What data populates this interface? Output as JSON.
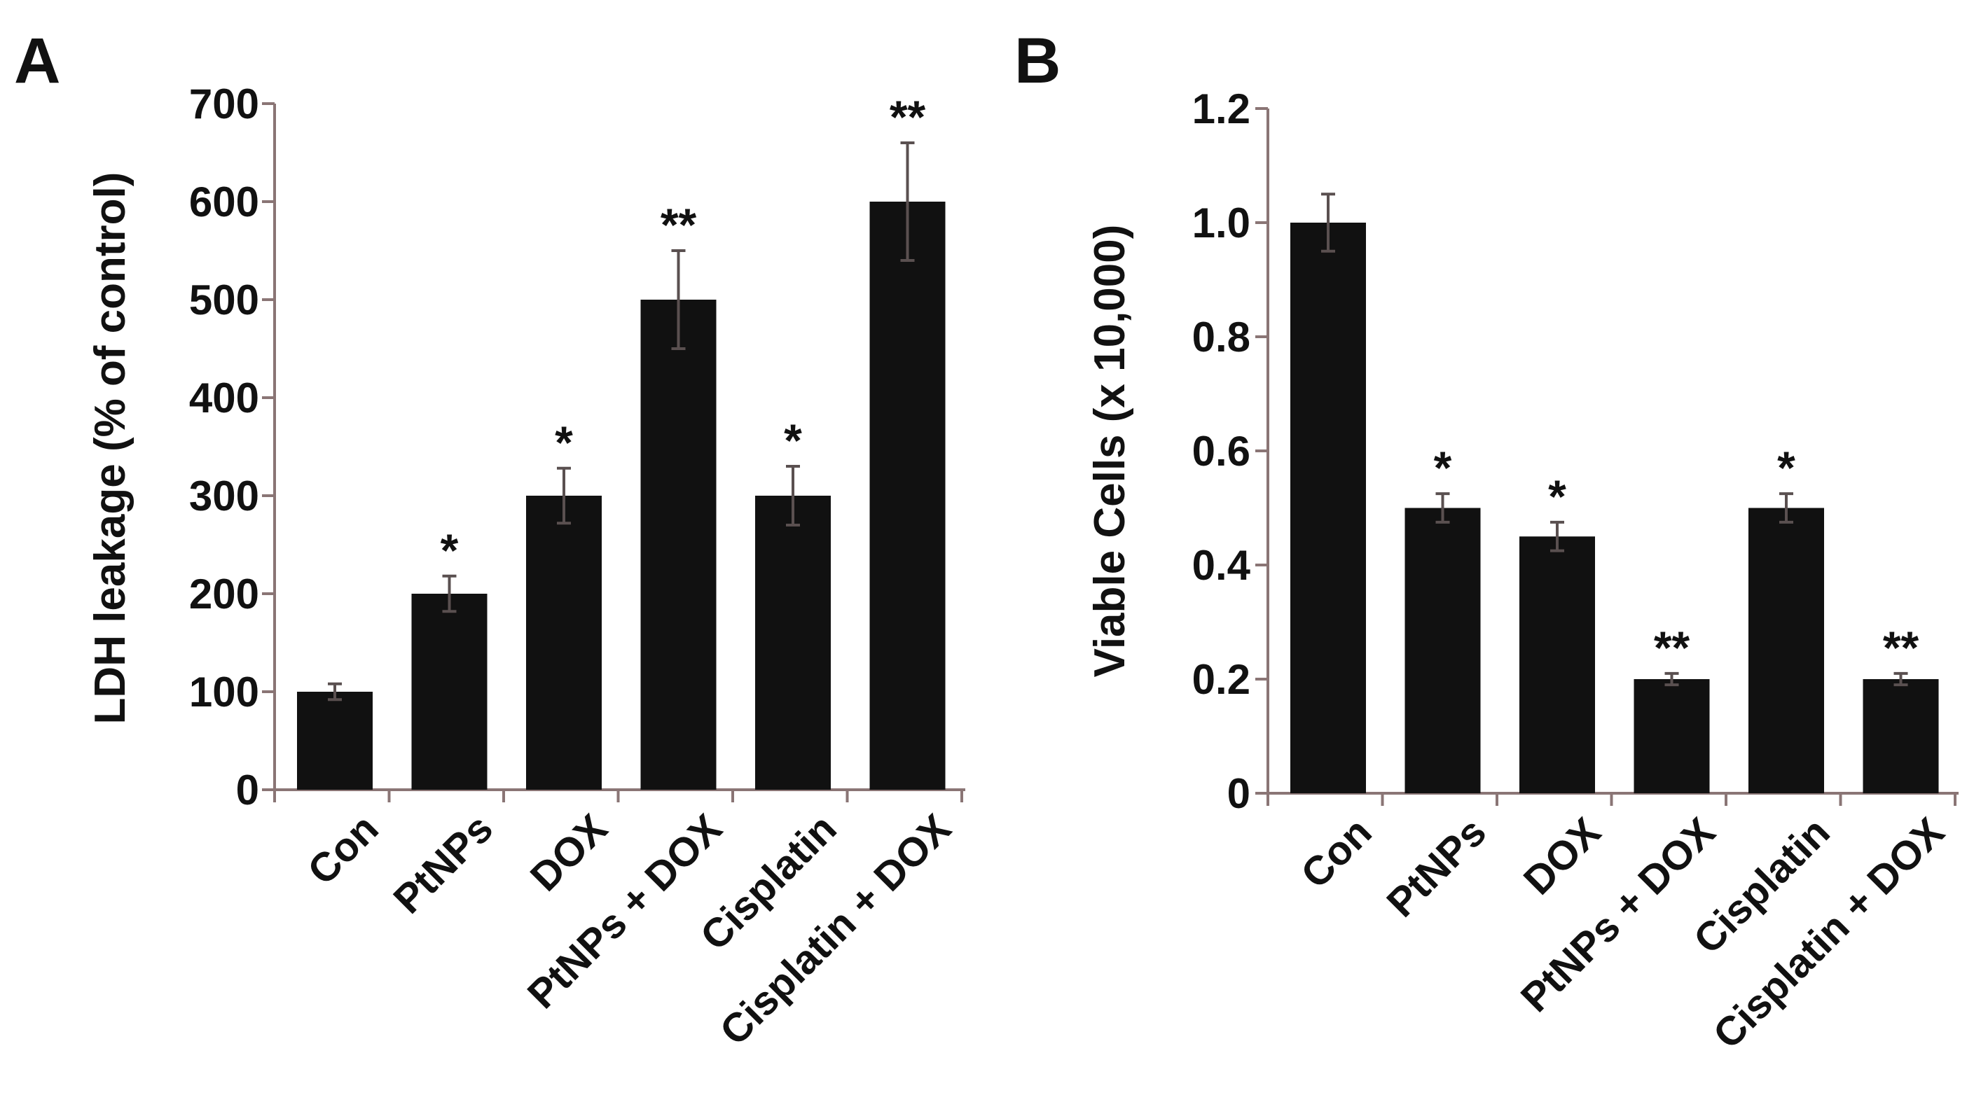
{
  "figure": {
    "background": "#ffffff",
    "bar_color": "#111111",
    "axis_color": "#8a7575",
    "error_color": "#5a5050"
  },
  "chart_data": [
    {
      "panel": "A",
      "type": "bar",
      "title": "",
      "xlabel": "",
      "ylabel": "LDH leakage (% of control)",
      "ylim": [
        0,
        700
      ],
      "yticks": [
        0,
        100,
        200,
        300,
        400,
        500,
        600,
        700
      ],
      "ytick_labels": [
        "0",
        "100",
        "200",
        "300",
        "400",
        "500",
        "600",
        "700"
      ],
      "categories": [
        "Con",
        "PtNPs",
        "DOX",
        "PtNPs + DOX",
        "Cisplatin",
        "Cisplatin + DOX"
      ],
      "values": [
        100,
        200,
        300,
        500,
        300,
        600
      ],
      "errors": [
        8,
        18,
        28,
        50,
        30,
        60
      ],
      "significance": [
        "",
        "*",
        "*",
        "**",
        "*",
        "**"
      ]
    },
    {
      "panel": "B",
      "type": "bar",
      "title": "",
      "xlabel": "",
      "ylabel": "Viable Cells (x 10,000)",
      "ylim": [
        0,
        1.2
      ],
      "yticks": [
        0,
        0.2,
        0.4,
        0.6,
        0.8,
        1.0,
        1.2
      ],
      "ytick_labels": [
        "0",
        "0.2",
        "0.4",
        "0.6",
        "0.8",
        "1.0",
        "1.2"
      ],
      "categories": [
        "Con",
        "PtNPs",
        "DOX",
        "PtNPs + DOX",
        "Cisplatin",
        "Cisplatin + DOX"
      ],
      "values": [
        1.0,
        0.5,
        0.45,
        0.2,
        0.5,
        0.2
      ],
      "errors": [
        0.05,
        0.025,
        0.025,
        0.01,
        0.025,
        0.01
      ],
      "significance": [
        "",
        "*",
        "*",
        "**",
        "*",
        "**"
      ]
    }
  ]
}
